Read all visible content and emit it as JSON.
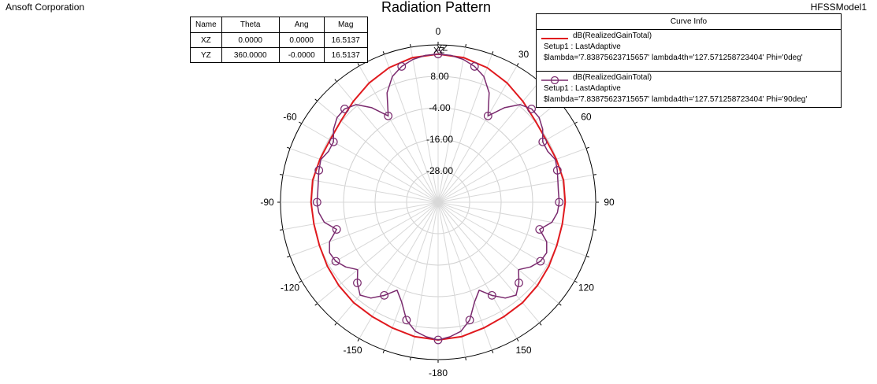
{
  "header": {
    "company": "Ansoft Corporation",
    "model": "HFSSModel1",
    "title": "Radiation Pattern"
  },
  "marker_table": {
    "headers": [
      "Name",
      "Theta",
      "Ang",
      "Mag"
    ],
    "rows": [
      [
        "XZ",
        "0.0000",
        "0.0000",
        "16.5137"
      ],
      [
        "YZ",
        "360.0000",
        "-0.0000",
        "16.5137"
      ]
    ]
  },
  "legend": {
    "title": "Curve Info",
    "entries": [
      {
        "name": "dB(RealizedGainTotal)",
        "setup": "Setup1 : LastAdaptive",
        "params": "$lambda='7.83875623715657' lambda4th='127.571258723404' Phi='0deg'",
        "color": "#e0191e",
        "marker": "none"
      },
      {
        "name": "dB(RealizedGainTotal)",
        "setup": "Setup1 : LastAdaptive",
        "params": "$lambda='7.83875623715657' lambda4th='127.571258723404' Phi='90deg'",
        "color": "#7a2a6e",
        "marker": "circle"
      }
    ]
  },
  "chart_data": {
    "type": "polar",
    "title": "Radiation Pattern",
    "angle_unit": "deg",
    "angle_ticks": [
      0,
      30,
      60,
      90,
      120,
      150,
      -180,
      -150,
      -120,
      -90,
      -60,
      -30
    ],
    "angle_tick_labels": [
      "0",
      "30",
      "60",
      "90",
      "120",
      "150",
      "-180",
      "-150",
      "-120",
      "-90",
      "-60",
      ""
    ],
    "radial_ticks": [
      -40,
      -28,
      -16,
      -4,
      8,
      20
    ],
    "radial_tick_labels": [
      "-28.00",
      "-16.00",
      "-4.00",
      "8.00"
    ],
    "rlim": [
      -40,
      20
    ],
    "grid": true,
    "legend_position": "top-right",
    "series": [
      {
        "name": "dB(RealizedGainTotal) Phi='0deg'",
        "color": "#e0191e",
        "marker": "none",
        "theta": [
          0,
          10,
          20,
          30,
          40,
          50,
          60,
          70,
          80,
          90,
          100,
          110,
          120,
          130,
          140,
          150,
          160,
          170,
          180,
          -170,
          -160,
          -150,
          -140,
          -130,
          -120,
          -110,
          -100,
          -90,
          -80,
          -70,
          -60,
          -50,
          -40,
          -30,
          -20,
          -10
        ],
        "r": [
          16.5,
          16.0,
          14.6,
          12.5,
          10.2,
          8.3,
          7.5,
          7.9,
          8.5,
          8.4,
          8.0,
          8.1,
          8.7,
          9.4,
          10.0,
          10.3,
          11.0,
          12.0,
          12.5,
          12.0,
          11.0,
          10.3,
          10.0,
          9.4,
          8.7,
          8.1,
          8.0,
          8.4,
          8.5,
          7.9,
          7.5,
          8.3,
          10.2,
          12.5,
          14.6,
          16.0
        ]
      },
      {
        "name": "dB(RealizedGainTotal) Phi='90deg'",
        "color": "#7a2a6e",
        "marker": "circle",
        "theta": [
          0,
          5,
          10,
          15,
          20,
          25,
          30,
          35,
          40,
          45,
          50,
          55,
          60,
          65,
          70,
          75,
          80,
          85,
          90,
          95,
          100,
          105,
          110,
          115,
          120,
          125,
          130,
          135,
          140,
          145,
          150,
          155,
          160,
          165,
          170,
          175,
          180,
          -175,
          -170,
          -165,
          -160,
          -155,
          -150,
          -145,
          -140,
          -135,
          -130,
          -125,
          -120,
          -115,
          -110,
          -105,
          -100,
          -95,
          -90,
          -85,
          -80,
          -75,
          -70,
          -65,
          -60,
          -55,
          -50,
          -45,
          -40,
          -35,
          -30,
          -25,
          -20,
          -15,
          -10,
          -5
        ],
        "r": [
          16.5,
          16.2,
          15.3,
          13.6,
          11.0,
          6.0,
          -2.0,
          4.0,
          8.6,
          10.3,
          10.2,
          8.6,
          6.0,
          6.0,
          7.5,
          7.0,
          6.3,
          6.0,
          6.1,
          5.6,
          4.0,
          0.0,
          4.0,
          5.6,
          5.0,
          3.0,
          0.0,
          3.5,
          6.2,
          4.6,
          1.0,
          -3.0,
          0.5,
          6.5,
          10.0,
          11.5,
          12.5,
          11.5,
          10.0,
          6.5,
          0.5,
          -3.0,
          1.0,
          4.6,
          6.2,
          3.5,
          0.0,
          3.0,
          5.0,
          5.6,
          4.0,
          0.0,
          4.0,
          5.6,
          6.1,
          6.0,
          6.3,
          7.0,
          7.5,
          6.0,
          6.0,
          8.6,
          10.2,
          10.3,
          8.6,
          4.0,
          -2.0,
          6.0,
          11.0,
          13.6,
          15.3,
          16.2
        ]
      }
    ],
    "annotations": [
      "XZ",
      "YZ"
    ]
  }
}
